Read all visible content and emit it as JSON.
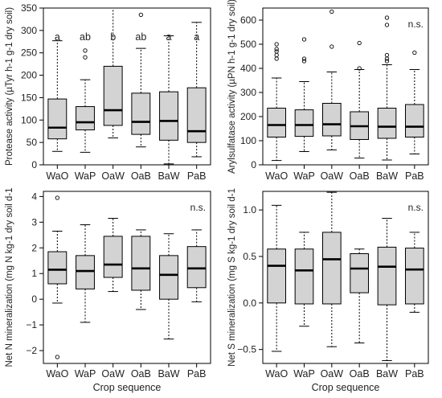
{
  "figure_xlabel": "Crop sequence",
  "chart_data": [
    {
      "type": "box",
      "ylabel": "Protease activity (µTyr h-1 g-1 dry soil)",
      "ylim": [
        0,
        350
      ],
      "yticks": [
        "0",
        "50",
        "100",
        "150",
        "200",
        "250",
        "300",
        "350"
      ],
      "categories": [
        "WaO",
        "WaP",
        "OaW",
        "OaB",
        "BaW",
        "PaB"
      ],
      "stats": [
        {
          "min": 30,
          "q1": 58,
          "median": 83,
          "q3": 147,
          "max": 277,
          "outliers": []
        },
        {
          "min": 28,
          "q1": 78,
          "median": 95,
          "q3": 130,
          "max": 190,
          "outliers": [
            240,
            255
          ]
        },
        {
          "min": 60,
          "q1": 88,
          "median": 122,
          "q3": 220,
          "max": 350,
          "outliers": []
        },
        {
          "min": 40,
          "q1": 68,
          "median": 96,
          "q3": 160,
          "max": 260,
          "outliers": [
            335
          ]
        },
        {
          "min": 2,
          "q1": 55,
          "median": 98,
          "q3": 163,
          "max": 288,
          "outliers": []
        },
        {
          "min": 18,
          "q1": 50,
          "median": 75,
          "q3": 172,
          "max": 318,
          "outliers": []
        }
      ],
      "letters": [
        "a",
        "ab",
        "b",
        "ab",
        "a",
        "a"
      ],
      "annotation": ""
    },
    {
      "type": "box",
      "ylabel": "Arylsulfatase activity (µPN h-1 g-1 dry soil)",
      "ylim": [
        0,
        650
      ],
      "yticks": [
        "0",
        "100",
        "200",
        "300",
        "400",
        "500",
        "600"
      ],
      "categories": [
        "WaO",
        "WaP",
        "OaW",
        "OaB",
        "BaW",
        "PaB"
      ],
      "stats": [
        {
          "min": 18,
          "q1": 115,
          "median": 165,
          "q3": 235,
          "max": 360,
          "outliers": [
            440,
            455,
            470,
            480,
            500
          ]
        },
        {
          "min": 55,
          "q1": 118,
          "median": 165,
          "q3": 228,
          "max": 345,
          "outliers": [
            430,
            440,
            520
          ]
        },
        {
          "min": 62,
          "q1": 120,
          "median": 168,
          "q3": 255,
          "max": 385,
          "outliers": [
            490,
            635
          ]
        },
        {
          "min": 28,
          "q1": 105,
          "median": 160,
          "q3": 220,
          "max": 395,
          "outliers": [
            400,
            505
          ]
        },
        {
          "min": 20,
          "q1": 110,
          "median": 158,
          "q3": 235,
          "max": 415,
          "outliers": [
            430,
            440,
            455,
            580,
            610
          ]
        },
        {
          "min": 45,
          "q1": 115,
          "median": 158,
          "q3": 250,
          "max": 395,
          "outliers": [
            465
          ]
        }
      ],
      "letters": [],
      "annotation": "n.s."
    },
    {
      "type": "box",
      "ylabel": "Net N mineralization (mg N kg-1 dry soil d-1",
      "ylim": [
        -2.5,
        4.2
      ],
      "yticks": [
        "−2",
        "−1",
        "0",
        "1",
        "2",
        "3",
        "4"
      ],
      "categories": [
        "WaO",
        "WaP",
        "OaW",
        "OaB",
        "BaW",
        "PaB"
      ],
      "stats": [
        {
          "min": -0.15,
          "q1": 0.6,
          "median": 1.15,
          "q3": 1.85,
          "max": 2.65,
          "outliers": [
            3.95,
            -2.25
          ]
        },
        {
          "min": -0.9,
          "q1": 0.4,
          "median": 1.1,
          "q3": 1.7,
          "max": 2.9,
          "outliers": []
        },
        {
          "min": 0.3,
          "q1": 0.85,
          "median": 1.35,
          "q3": 2.45,
          "max": 3.15,
          "outliers": []
        },
        {
          "min": -0.4,
          "q1": 0.35,
          "median": 1.2,
          "q3": 2.45,
          "max": 2.7,
          "outliers": []
        },
        {
          "min": -1.55,
          "q1": 0.0,
          "median": 0.95,
          "q3": 1.7,
          "max": 2.55,
          "outliers": []
        },
        {
          "min": -0.1,
          "q1": 0.45,
          "median": 1.2,
          "q3": 2.05,
          "max": 2.7,
          "outliers": []
        }
      ],
      "letters": [],
      "annotation": "n.s."
    },
    {
      "type": "box",
      "ylabel": "Net S mineralization (mg S kg-1 dry soil d-1",
      "ylim": [
        -0.65,
        1.2
      ],
      "yticks": [
        "−0.5",
        "0.0",
        "0.5",
        "1.0"
      ],
      "categories": [
        "WaO",
        "WaP",
        "OaW",
        "OaB",
        "BaW",
        "PaB"
      ],
      "stats": [
        {
          "min": -0.52,
          "q1": 0.0,
          "median": 0.4,
          "q3": 0.58,
          "max": 1.05,
          "outliers": []
        },
        {
          "min": -0.25,
          "q1": -0.01,
          "median": 0.35,
          "q3": 0.58,
          "max": 0.76,
          "outliers": []
        },
        {
          "min": -0.47,
          "q1": -0.01,
          "median": 0.47,
          "q3": 0.76,
          "max": 1.19,
          "outliers": []
        },
        {
          "min": -0.43,
          "q1": 0.11,
          "median": 0.37,
          "q3": 0.53,
          "max": 0.58,
          "outliers": []
        },
        {
          "min": -0.62,
          "q1": -0.02,
          "median": 0.39,
          "q3": 0.6,
          "max": 0.91,
          "outliers": []
        },
        {
          "min": -0.1,
          "q1": -0.01,
          "median": 0.36,
          "q3": 0.59,
          "max": 0.76,
          "outliers": []
        }
      ],
      "letters": [],
      "annotation": "n.s."
    }
  ],
  "style": {
    "box_fill": "#d3d3d3",
    "stroke": "#000000",
    "median": "#000000"
  }
}
